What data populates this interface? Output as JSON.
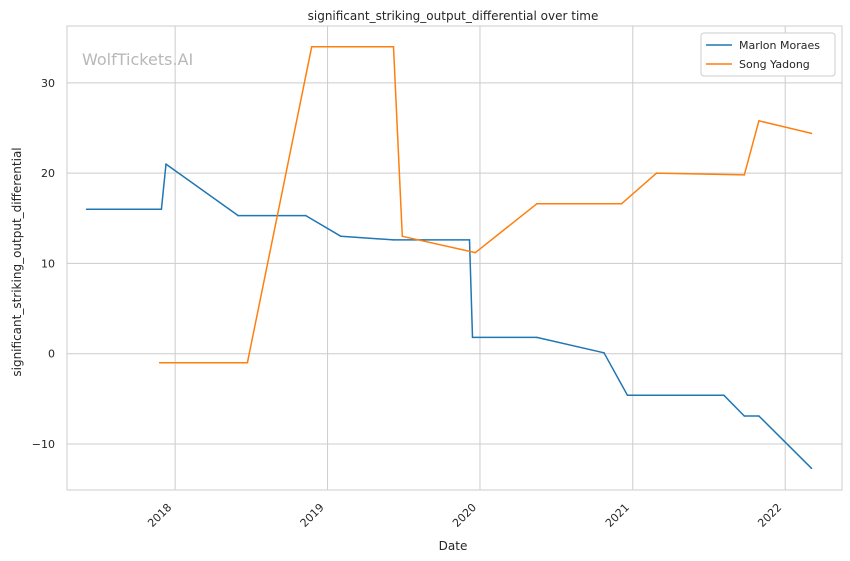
{
  "watermark": "WolfTickets.AI",
  "chart_data": {
    "type": "line",
    "title": "significant_striking_output_differential over time",
    "xlabel": "Date",
    "ylabel": "significant_striking_output_differential",
    "xlim": [
      "2017-04-17",
      "2022-05-17"
    ],
    "ylim": [
      -15.1,
      36.3
    ],
    "x_ticks": [
      "2018-01-01",
      "2019-01-01",
      "2020-01-01",
      "2021-01-01",
      "2022-01-01"
    ],
    "x_tick_labels": [
      "2018",
      "2019",
      "2020",
      "2021",
      "2022"
    ],
    "y_ticks": [
      -10,
      0,
      10,
      20,
      30
    ],
    "y_tick_labels": [
      "−10",
      "0",
      "10",
      "20",
      "30"
    ],
    "grid": true,
    "legend_position": "top-right",
    "series": [
      {
        "name": "Marlon Moraes",
        "color": "#1f77b4",
        "points": [
          [
            "2017-06-03",
            16.0
          ],
          [
            "2017-11-29",
            16.0
          ],
          [
            "2017-12-10",
            21.0
          ],
          [
            "2018-06-01",
            15.3
          ],
          [
            "2018-11-10",
            15.3
          ],
          [
            "2019-02-02",
            13.0
          ],
          [
            "2019-06-08",
            12.6
          ],
          [
            "2019-12-07",
            12.6
          ],
          [
            "2019-12-14",
            1.8
          ],
          [
            "2020-05-16",
            1.8
          ],
          [
            "2020-10-24",
            0.1
          ],
          [
            "2020-12-19",
            -4.6
          ],
          [
            "2021-08-07",
            -4.6
          ],
          [
            "2021-09-25",
            -6.9
          ],
          [
            "2021-10-30",
            -6.9
          ],
          [
            "2022-03-05",
            -12.7
          ]
        ]
      },
      {
        "name": "Song Yadong",
        "color": "#ff7f0e",
        "points": [
          [
            "2017-11-25",
            -1.0
          ],
          [
            "2018-06-23",
            -1.0
          ],
          [
            "2018-11-24",
            34.0
          ],
          [
            "2019-06-08",
            34.0
          ],
          [
            "2019-06-29",
            13.0
          ],
          [
            "2019-12-21",
            11.2
          ],
          [
            "2020-05-16",
            16.6
          ],
          [
            "2020-12-05",
            16.6
          ],
          [
            "2021-02-27",
            20.0
          ],
          [
            "2021-09-25",
            19.8
          ],
          [
            "2021-10-30",
            25.8
          ],
          [
            "2022-03-05",
            24.4
          ]
        ]
      }
    ]
  }
}
